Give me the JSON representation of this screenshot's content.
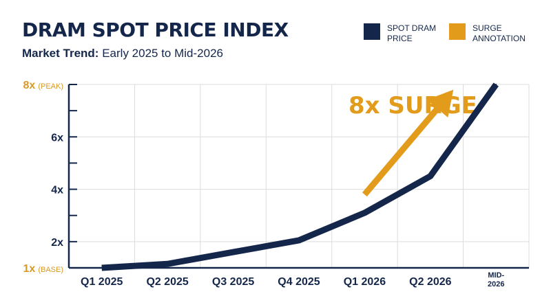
{
  "header": {
    "title": "DRAM SPOT PRICE INDEX",
    "subtitle_lead": "Market Trend:",
    "subtitle_rest": " Early 2025 to Mid-2026"
  },
  "legend": [
    {
      "label": "SPOT DRAM PRICE",
      "color": "#14264a"
    },
    {
      "label": "SURGE ANNOTATION",
      "color": "#e29b1b"
    }
  ],
  "chart_data": {
    "type": "line",
    "title": "DRAM SPOT PRICE INDEX",
    "subtitle": "Market Trend: Early 2025 to Mid-2026",
    "xlabel": "",
    "ylabel": "",
    "categories": [
      "Q1 2025",
      "Q2 2025",
      "Q3 2025",
      "Q4 2025",
      "Q1 2026",
      "Q2 2026",
      "MID-2026"
    ],
    "y_ticks": [
      {
        "value": 1,
        "main": "1x",
        "sub": "(BASE)",
        "color": "#d99a24"
      },
      {
        "value": 2,
        "main": "2x",
        "sub": "",
        "color": "#14264a"
      },
      {
        "value": 4,
        "main": "4x",
        "sub": "",
        "color": "#14264a"
      },
      {
        "value": 6,
        "main": "6x",
        "sub": "",
        "color": "#14264a"
      },
      {
        "value": 8,
        "main": "8x",
        "sub": "(PEAK)",
        "color": "#d99a24"
      }
    ],
    "ylim": [
      1,
      8
    ],
    "grid": true,
    "legend_position": "top-right",
    "series": [
      {
        "name": "SPOT DRAM PRICE",
        "color": "#14264a",
        "points": [
          {
            "x": 0.5,
            "y": 1.0
          },
          {
            "x": 1.5,
            "y": 1.15
          },
          {
            "x": 2.5,
            "y": 1.6
          },
          {
            "x": 3.5,
            "y": 2.05
          },
          {
            "x": 4.5,
            "y": 3.1
          },
          {
            "x": 5.5,
            "y": 4.5
          },
          {
            "x": 6.5,
            "y": 8.0
          }
        ]
      }
    ],
    "annotations": [
      {
        "text": "8x SURGE",
        "color": "#e29b1b",
        "arrow_from": {
          "x": 4.5,
          "y": 3.8
        },
        "arrow_to": {
          "x": 5.85,
          "y": 7.8
        }
      }
    ]
  }
}
